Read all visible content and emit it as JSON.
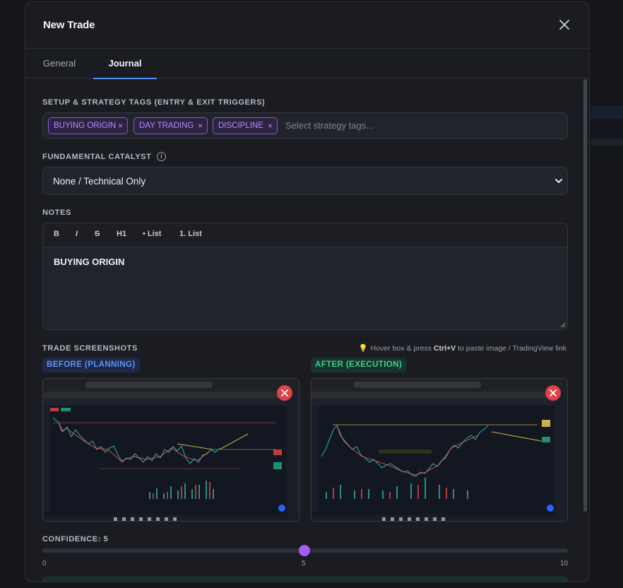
{
  "modal": {
    "title": "New Trade"
  },
  "tabs": [
    {
      "label": "General"
    },
    {
      "label": "Journal"
    }
  ],
  "strategy": {
    "label": "SETUP & STRATEGY TAGS (ENTRY & EXIT TRIGGERS)",
    "tags": [
      "BUYING ORIGIN",
      "DAY TRADING",
      "DISCIPLINE"
    ],
    "remove_glyph": "×",
    "placeholder": "Select strategy tags..."
  },
  "catalyst": {
    "label": "FUNDAMENTAL CATALYST",
    "info_glyph": "i",
    "value": "None / Technical Only"
  },
  "notes": {
    "label": "NOTES",
    "toolbar": [
      "B",
      "I",
      "S",
      "H1",
      "• List",
      "1. List"
    ],
    "text": "BUYING ORIGIN"
  },
  "screenshots": {
    "label": "TRADE SCREENSHOTS",
    "hint_prefix": "Hover box & press ",
    "hint_key": "Ctrl+V",
    "hint_suffix": " to paste image / TradingView link",
    "before_label": "BEFORE (PLANNING)",
    "after_label": "AFTER (EXECUTION)"
  },
  "confidence": {
    "label": "CONFIDENCE: 5",
    "min": "0",
    "mid": "5",
    "max": "10",
    "value": 5,
    "range": [
      0,
      10
    ]
  },
  "colors": {
    "accent": "#4d8df5",
    "tag": "#8a55e6",
    "slider": "#a45cf5",
    "remove": "#e0414a",
    "before": "#5b93f8",
    "after": "#3fcf8e"
  },
  "icons": {
    "close": "close-icon",
    "chevron": "chevron-down-icon",
    "info": "info-icon",
    "bulb": "lightbulb-icon",
    "remove": "remove-icon"
  }
}
